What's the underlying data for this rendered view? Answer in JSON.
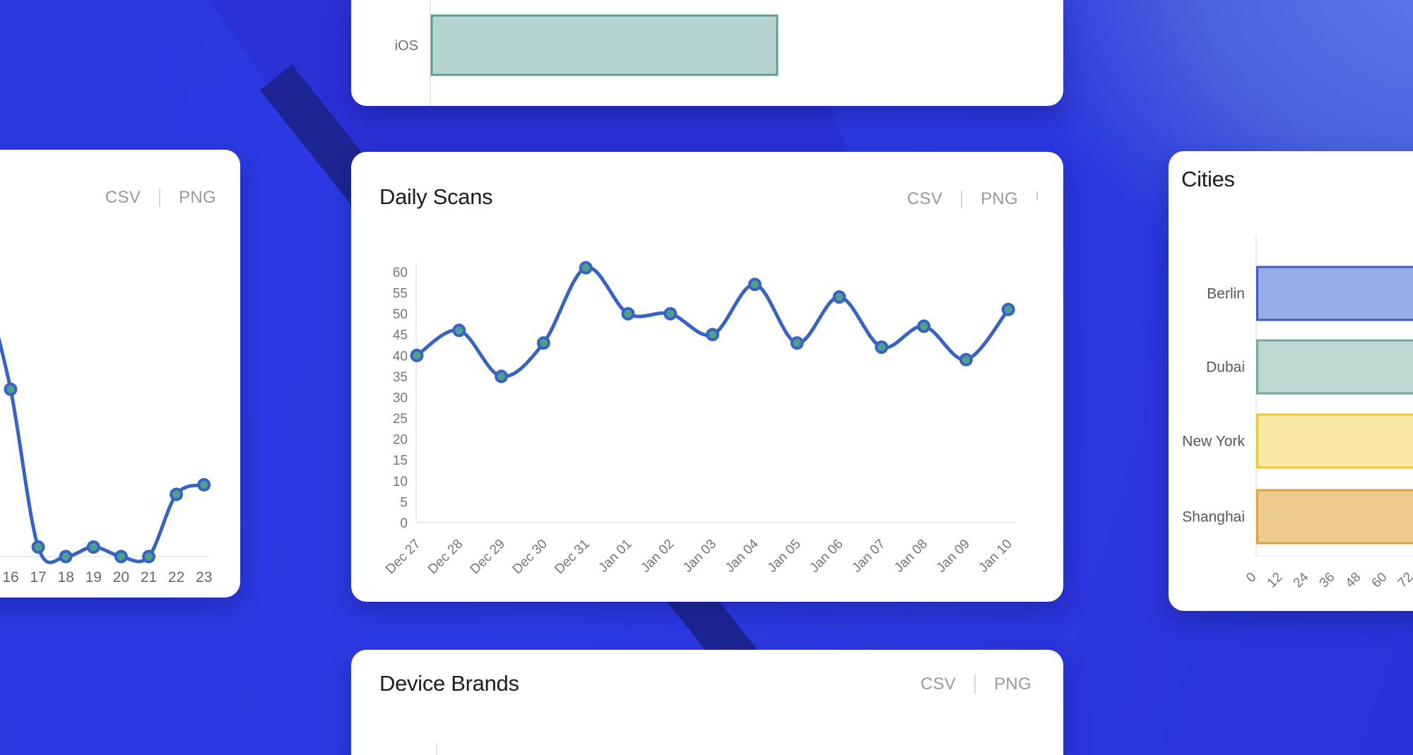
{
  "actions": {
    "csv_label": "CSV",
    "png_label": "PNG"
  },
  "cards": {
    "top_partial": {
      "bar_label": "iOS"
    },
    "hourly_partial": {
      "x_labels": [
        "16",
        "17",
        "18",
        "19",
        "20",
        "21",
        "22",
        "23"
      ]
    },
    "daily_scans": {
      "title": "Daily Scans"
    },
    "cities": {
      "title": "Cities"
    },
    "device_brands": {
      "title": "Device Brands"
    }
  },
  "colors": {
    "line": "#3763c5",
    "marker_fill": "#4f9f8e",
    "axis_line": "#e6e6e6",
    "tick_text": "#757575",
    "category_text": "#58585c",
    "ios_fill": "#b5d4cf",
    "ios_stroke": "#5f9e94",
    "wallpaper_base": "#2b37de",
    "wallpaper_indigo": "#2a30d4",
    "wallpaper_navy_stripe": "#1c2593",
    "wallpaper_glow": "#5f7ce9"
  },
  "chart_data": [
    {
      "type": "bar",
      "title": "",
      "orientation": "horizontal",
      "categories": [
        "iOS"
      ],
      "values": [
        null
      ],
      "note": "Top card cut off by screen top; one teal bar visible, value axis not shown",
      "bar_fill": "#b5d4cf",
      "bar_stroke": "#5f9e94"
    },
    {
      "type": "line",
      "title": "",
      "x": [
        "16",
        "17",
        "18",
        "19",
        "20",
        "21",
        "22",
        "23"
      ],
      "values": [
        35,
        2,
        0,
        2,
        0,
        0,
        13,
        15
      ],
      "lead_in_value": 58,
      "note": "Left card cut off at screen edge; y-axis hidden, values estimated from point heights",
      "grid": false
    },
    {
      "type": "line",
      "title": "Daily Scans",
      "x": [
        "Dec 27",
        "Dec 28",
        "Dec 29",
        "Dec 30",
        "Dec 31",
        "Jan 01",
        "Jan 02",
        "Jan 03",
        "Jan 04",
        "Jan 05",
        "Jan 06",
        "Jan 07",
        "Jan 08",
        "Jan 09",
        "Jan 10"
      ],
      "values": [
        40,
        46,
        35,
        43,
        61,
        50,
        50,
        45,
        57,
        43,
        54,
        42,
        47,
        39,
        51
      ],
      "ylim": [
        0,
        60
      ],
      "y_tick_step": 5,
      "xlabel": "",
      "ylabel": "",
      "grid": false,
      "legend": "none"
    },
    {
      "type": "bar",
      "title": "Cities",
      "orientation": "horizontal",
      "categories": [
        "Berlin",
        "Dubai",
        "New York",
        "Shanghai"
      ],
      "values": [
        null,
        null,
        null,
        null
      ],
      "x_ticks": [
        0,
        12,
        24,
        36,
        48,
        60,
        72
      ],
      "note": "All four bars extend past the right screen edge (each ≥ ~78); exact values not visible",
      "bars": [
        {
          "label": "Berlin",
          "fill": "#97abe5",
          "stroke": "#3d5bc6"
        },
        {
          "label": "Dubai",
          "fill": "#bcd9d3",
          "stroke": "#6fa9a0"
        },
        {
          "label": "New York",
          "fill": "#fbe9a8",
          "stroke": "#f0c53c"
        },
        {
          "label": "Shanghai",
          "fill": "#edca8e",
          "stroke": "#d9a245"
        }
      ]
    },
    {
      "type": "bar",
      "title": "Device Brands",
      "note": "Only card header and a sliver of the axis visible at screen bottom"
    }
  ]
}
